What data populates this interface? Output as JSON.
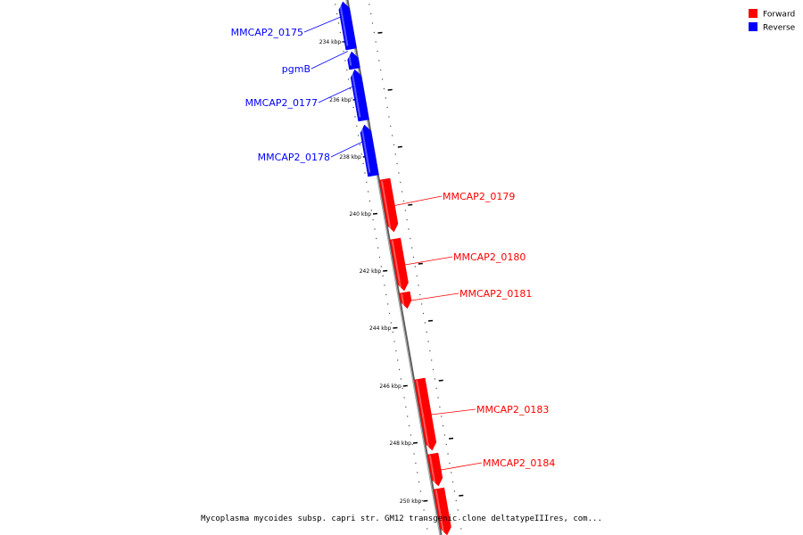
{
  "legend": [
    {
      "label": "Forward",
      "color": "#ff0000"
    },
    {
      "label": "Reverse",
      "color": "#0000ff"
    }
  ],
  "tick_labels": [
    "234 kbp",
    "236 kbp",
    "238 kbp",
    "240 kbp",
    "242 kbp",
    "244 kbp",
    "246 kbp",
    "248 kbp",
    "250 kbp"
  ],
  "genes": [
    {
      "name": "MMCAP2_0175",
      "strand": "Reverse"
    },
    {
      "name": "pgmB",
      "strand": "Reverse"
    },
    {
      "name": "MMCAP2_0177",
      "strand": "Reverse"
    },
    {
      "name": "MMCAP2_0178",
      "strand": "Reverse"
    },
    {
      "name": "MMCAP2_0179",
      "strand": "Forward"
    },
    {
      "name": "MMCAP2_0180",
      "strand": "Forward"
    },
    {
      "name": "MMCAP2_0181",
      "strand": "Forward"
    },
    {
      "name": "MMCAP2_0183",
      "strand": "Forward"
    },
    {
      "name": "MMCAP2_0184",
      "strand": "Forward"
    },
    {
      "name": "",
      "strand": "Forward"
    }
  ],
  "colors": {
    "forward": "#ff0000",
    "reverse": "#0000ff",
    "backbone": "#888888"
  },
  "caption": "Mycoplasma mycoides subsp. capri str. GM12 transgenic clone deltatypeIIIres, com..."
}
